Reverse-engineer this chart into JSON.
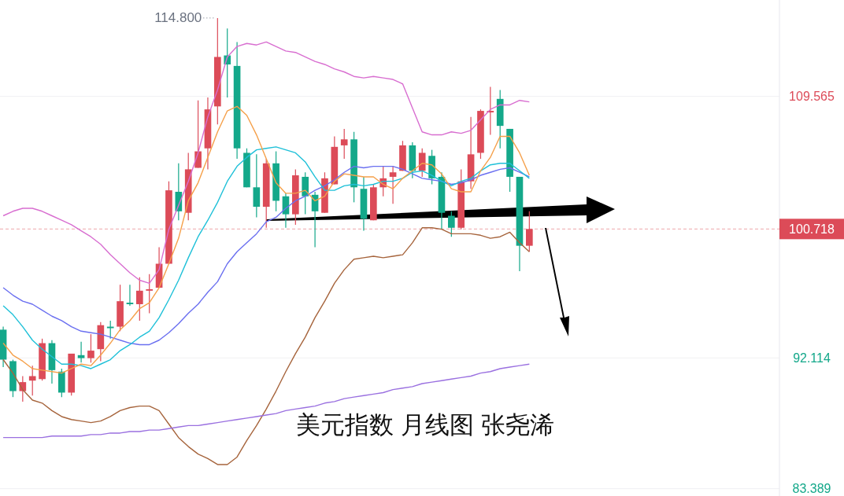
{
  "chart_data": {
    "type": "candlestick",
    "categories": [
      null,
      null,
      null,
      null,
      null,
      null,
      null,
      null,
      null,
      null,
      null,
      null,
      null,
      null,
      null,
      null,
      null,
      null,
      null,
      null,
      null,
      null,
      null,
      null,
      null,
      null,
      null,
      null,
      null,
      null,
      null,
      null,
      null,
      null,
      null,
      null,
      null,
      null,
      null,
      null,
      null,
      null,
      null,
      null,
      null,
      null,
      null,
      null,
      null,
      null,
      null,
      null,
      null,
      null,
      null
    ],
    "ohlc": [
      [
        94.0,
        94.2,
        91.5,
        92.0
      ],
      [
        91.9,
        92.0,
        89.5,
        89.9
      ],
      [
        89.9,
        90.9,
        89.2,
        90.5
      ],
      [
        90.6,
        91.6,
        89.6,
        90.9
      ],
      [
        90.7,
        93.4,
        90.6,
        93.1
      ],
      [
        93.1,
        93.3,
        90.4,
        91.3
      ],
      [
        91.2,
        91.4,
        89.5,
        89.8
      ],
      [
        89.8,
        92.4,
        89.6,
        92.4
      ],
      [
        92.3,
        93.2,
        91.8,
        92.1
      ],
      [
        92.1,
        93.7,
        91.8,
        92.6
      ],
      [
        92.7,
        94.5,
        91.9,
        94.3
      ],
      [
        94.2,
        94.6,
        93.4,
        94.1
      ],
      [
        94.2,
        97.0,
        93.9,
        95.9
      ],
      [
        95.8,
        97.0,
        95.6,
        95.7
      ],
      [
        95.7,
        97.5,
        94.6,
        96.6
      ],
      [
        96.6,
        97.7,
        95.1,
        96.7
      ],
      [
        96.8,
        99.5,
        96.8,
        98.4
      ],
      [
        98.4,
        103.9,
        98.4,
        103.3
      ],
      [
        103.2,
        105.1,
        101.3,
        101.9
      ],
      [
        101.8,
        105.8,
        101.3,
        104.7
      ],
      [
        104.8,
        109.3,
        104.8,
        105.9
      ],
      [
        106.1,
        109.5,
        104.7,
        108.7
      ],
      [
        108.9,
        114.8,
        107.7,
        112.2
      ],
      [
        112.3,
        114.1,
        109.5,
        111.7
      ],
      [
        111.6,
        113.2,
        105.4,
        106.1
      ],
      [
        105.8,
        106.1,
        103.5,
        103.5
      ],
      [
        103.5,
        105.7,
        101.5,
        102.2
      ],
      [
        102.2,
        105.4,
        100.8,
        105.1
      ],
      [
        105.1,
        105.9,
        101.9,
        102.6
      ],
      [
        102.9,
        103.1,
        100.8,
        101.7
      ],
      [
        101.7,
        104.7,
        101.0,
        104.3
      ],
      [
        104.2,
        104.5,
        101.7,
        102.9
      ],
      [
        103.0,
        103.2,
        99.5,
        101.9
      ],
      [
        101.8,
        104.5,
        101.8,
        104.1
      ],
      [
        103.7,
        106.9,
        103.7,
        106.2
      ],
      [
        106.3,
        107.4,
        105.4,
        106.7
      ],
      [
        106.7,
        107.2,
        102.5,
        103.5
      ],
      [
        103.4,
        104.2,
        100.6,
        101.4
      ],
      [
        101.3,
        103.7,
        101.3,
        103.5
      ],
      [
        103.5,
        104.9,
        102.9,
        104.1
      ],
      [
        104.2,
        104.9,
        102.4,
        104.5
      ],
      [
        104.6,
        106.6,
        104.6,
        106.3
      ],
      [
        106.3,
        106.5,
        104.1,
        104.6
      ],
      [
        104.6,
        106.1,
        104.2,
        105.8
      ],
      [
        105.6,
        106.0,
        103.7,
        104.1
      ],
      [
        104.2,
        104.5,
        100.7,
        101.8
      ],
      [
        101.6,
        101.9,
        100.2,
        100.8
      ],
      [
        100.8,
        104.7,
        100.7,
        103.9
      ],
      [
        103.9,
        108.2,
        103.4,
        105.7
      ],
      [
        105.8,
        108.7,
        105.4,
        108.6
      ],
      [
        108.5,
        110.2,
        107.0,
        108.6
      ],
      [
        109.4,
        110.0,
        106.1,
        107.6
      ],
      [
        107.4,
        107.4,
        103.2,
        104.2
      ],
      [
        104.2,
        104.2,
        97.9,
        99.6
      ],
      [
        99.6,
        101.9,
        99.2,
        100.718
      ]
    ],
    "colors": [
      "#14a88a",
      "#14a88a",
      "#dc4b58",
      "#dc4b58",
      "#dc4b58",
      "#14a88a",
      "#14a88a",
      "#dc4b58",
      "#14a88a",
      "#dc4b58",
      "#dc4b58",
      "#14a88a",
      "#dc4b58",
      "#14a88a",
      "#dc4b58",
      "#dc4b58",
      "#dc4b58",
      "#dc4b58",
      "#14a88a",
      "#dc4b58",
      "#dc4b58",
      "#dc4b58",
      "#dc4b58",
      "#14a88a",
      "#14a88a",
      "#14a88a",
      "#14a88a",
      "#dc4b58",
      "#14a88a",
      "#14a88a",
      "#dc4b58",
      "#14a88a",
      "#14a88a",
      "#dc4b58",
      "#dc4b58",
      "#dc4b58",
      "#14a88a",
      "#14a88a",
      "#dc4b58",
      "#dc4b58",
      "#dc4b58",
      "#dc4b58",
      "#14a88a",
      "#dc4b58",
      "#14a88a",
      "#14a88a",
      "#14a88a",
      "#dc4b58",
      "#dc4b58",
      "#dc4b58",
      "#dc4b58",
      "#14a88a",
      "#14a88a",
      "#14a88a",
      "#dc4b58"
    ],
    "series": [
      {
        "type": "line",
        "color": "#d86ed0",
        "values": [
          101.6,
          101.9,
          102.1,
          102.1,
          101.9,
          101.6,
          101.3,
          101.0,
          100.6,
          100.2,
          99.7,
          99.0,
          98.4,
          97.8,
          97.3,
          97.1,
          98.0,
          100.7,
          102.3,
          103.9,
          105.8,
          108.2,
          110.0,
          112.2,
          112.9,
          113.1,
          113.0,
          113.2,
          112.9,
          112.6,
          112.5,
          112.2,
          111.9,
          111.7,
          111.4,
          111.2,
          110.9,
          110.8,
          110.9,
          110.8,
          110.7,
          110.4,
          108.8,
          107.2,
          107.0,
          107.0,
          107.2,
          107.1,
          107.3,
          108.0,
          108.7,
          109.0,
          109.0,
          109.3,
          109.2
        ]
      },
      {
        "type": "line",
        "color": "#a6643c",
        "values": [
          92.0,
          91.1,
          90.0,
          89.3,
          89.1,
          88.6,
          88.2,
          88.0,
          87.9,
          87.8,
          87.9,
          88.2,
          88.6,
          88.8,
          88.9,
          88.9,
          88.6,
          87.7,
          86.8,
          86.2,
          85.7,
          85.4,
          85.0,
          85.0,
          85.5,
          86.6,
          87.6,
          88.7,
          89.9,
          91.2,
          92.4,
          93.5,
          94.8,
          95.9,
          97.1,
          98.0,
          98.7,
          98.8,
          98.9,
          98.8,
          98.9,
          99.0,
          99.8,
          100.8,
          100.8,
          100.7,
          100.4,
          100.4,
          100.4,
          100.3,
          100.1,
          100.2,
          100.5,
          99.8,
          99.2
        ]
      },
      {
        "type": "line",
        "color": "#6a6ff0",
        "values": [
          96.8,
          96.3,
          95.9,
          95.7,
          95.3,
          94.9,
          94.6,
          94.2,
          93.9,
          93.8,
          93.7,
          93.5,
          93.3,
          93.1,
          93.0,
          93.0,
          93.3,
          93.8,
          94.4,
          95.1,
          95.7,
          96.5,
          97.2,
          98.4,
          99.2,
          99.8,
          100.4,
          101.2,
          101.5,
          102.1,
          102.6,
          102.9,
          103.3,
          103.6,
          104.0,
          104.5,
          104.9,
          104.8,
          104.9,
          104.9,
          104.9,
          104.7,
          104.4,
          104.1,
          104.0,
          103.9,
          103.7,
          103.8,
          104.0,
          104.3,
          104.5,
          104.7,
          104.8,
          104.5,
          104.2
        ]
      },
      {
        "type": "line",
        "color": "#1ec0d8",
        "values": [
          95.6,
          95.0,
          94.2,
          93.3,
          92.7,
          92.2,
          91.7,
          91.7,
          91.6,
          91.4,
          91.7,
          92.0,
          92.6,
          93.0,
          93.5,
          93.9,
          94.8,
          96.0,
          97.3,
          98.8,
          100.2,
          101.3,
          102.5,
          103.9,
          104.9,
          105.5,
          106.0,
          106.1,
          106.2,
          106.0,
          105.8,
          105.2,
          104.2,
          103.3,
          103.3,
          103.6,
          103.7,
          103.6,
          103.7,
          103.9,
          103.9,
          104.1,
          104.5,
          104.6,
          104.3,
          103.9,
          103.6,
          103.9,
          104.1,
          104.6,
          105.0,
          105.1,
          105.1,
          104.6,
          104.1
        ]
      },
      {
        "type": "line",
        "color": "#f5a04a",
        "values": [
          93.1,
          92.3,
          91.9,
          91.4,
          91.3,
          91.2,
          91.1,
          91.4,
          91.7,
          91.6,
          92.3,
          93.1,
          94.0,
          94.6,
          95.4,
          95.8,
          96.8,
          98.4,
          100.1,
          102.6,
          103.8,
          105.5,
          107.2,
          108.6,
          108.9,
          108.3,
          107.0,
          105.4,
          103.8,
          103.1,
          103.1,
          103.3,
          102.6,
          102.9,
          103.9,
          104.4,
          104.3,
          104.2,
          104.2,
          103.7,
          103.4,
          104.1,
          104.6,
          105.1,
          105.0,
          104.4,
          103.4,
          103.2,
          103.2,
          104.6,
          105.5,
          106.9,
          106.9,
          105.8,
          104.3
        ]
      },
      {
        "type": "line",
        "color": "#9a70e0",
        "values": [
          86.8,
          86.8,
          86.8,
          86.8,
          86.8,
          86.9,
          86.9,
          86.9,
          86.9,
          87.0,
          87.0,
          87.1,
          87.1,
          87.2,
          87.2,
          87.3,
          87.3,
          87.4,
          87.5,
          87.6,
          87.6,
          87.7,
          87.8,
          87.9,
          88.0,
          88.1,
          88.2,
          88.3,
          88.4,
          88.6,
          88.7,
          88.8,
          88.9,
          89.1,
          89.2,
          89.4,
          89.5,
          89.6,
          89.7,
          89.8,
          90.0,
          90.1,
          90.2,
          90.4,
          90.5,
          90.6,
          90.7,
          90.8,
          90.9,
          91.1,
          91.2,
          91.4,
          91.5,
          91.6,
          91.7
        ]
      }
    ],
    "ylim": [
      82.9,
      116.0
    ],
    "yticks": [
      83.389,
      92.114,
      109.565
    ],
    "grid": "y",
    "ref_lines": [
      {
        "axis": "y",
        "value": 100.718,
        "label": "100.718",
        "color": "#dc4b58",
        "line_style": "dashed"
      }
    ],
    "annotations": [
      "114.800",
      "美元指数 月线图 张尧浠"
    ]
  }
}
